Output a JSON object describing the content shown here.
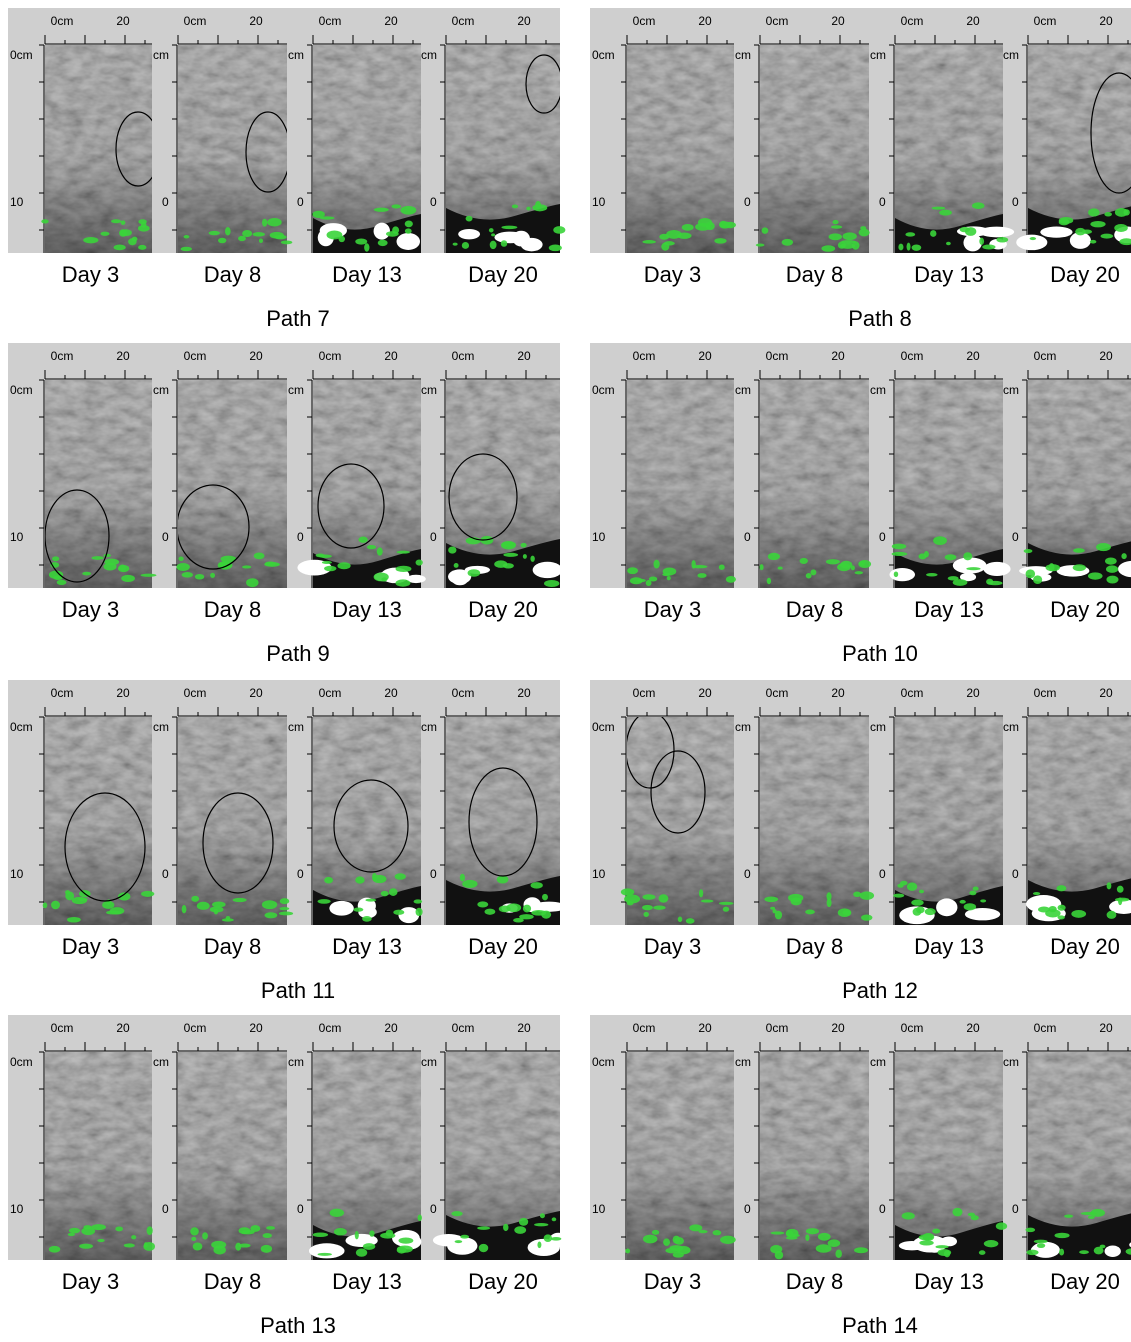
{
  "axis": {
    "top_start": "0cm",
    "top_end": "20",
    "left_start": "0cm",
    "left_end": "10",
    "left_start_clipped": "cm",
    "left_end_clipped": "0"
  },
  "groups": [
    {
      "label": "Path 7",
      "images": [
        {
          "label": "Day 3"
        },
        {
          "label": "Day 8"
        },
        {
          "label": "Day 13"
        },
        {
          "label": "Day 20"
        }
      ]
    },
    {
      "label": "Path 8",
      "images": [
        {
          "label": "Day 3"
        },
        {
          "label": "Day 8"
        },
        {
          "label": "Day 13"
        },
        {
          "label": "Day 20"
        }
      ]
    },
    {
      "label": "Path 9",
      "images": [
        {
          "label": "Day 3"
        },
        {
          "label": "Day 8"
        },
        {
          "label": "Day 13"
        },
        {
          "label": "Day 20"
        }
      ]
    },
    {
      "label": "Path 10",
      "images": [
        {
          "label": "Day 3"
        },
        {
          "label": "Day 8"
        },
        {
          "label": "Day 13"
        },
        {
          "label": "Day 20"
        }
      ]
    },
    {
      "label": "Path 11",
      "images": [
        {
          "label": "Day 3"
        },
        {
          "label": "Day 8"
        },
        {
          "label": "Day 13"
        },
        {
          "label": "Day 20"
        }
      ]
    },
    {
      "label": "Path 12",
      "images": [
        {
          "label": "Day 3"
        },
        {
          "label": "Day 8"
        },
        {
          "label": "Day 13"
        },
        {
          "label": "Day 20"
        }
      ]
    },
    {
      "label": "Path 13",
      "images": [
        {
          "label": "Day 3"
        },
        {
          "label": "Day 8"
        },
        {
          "label": "Day 13"
        },
        {
          "label": "Day 20"
        }
      ]
    },
    {
      "label": "Path 14",
      "images": [
        {
          "label": "Day 3"
        },
        {
          "label": "Day 8"
        },
        {
          "label": "Day 13"
        },
        {
          "label": "Day 20"
        }
      ]
    }
  ]
}
